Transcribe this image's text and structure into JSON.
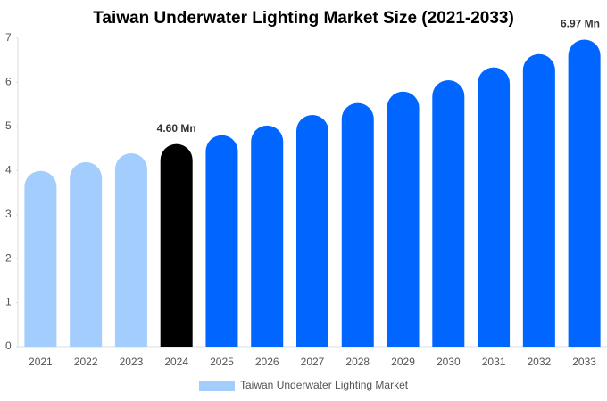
{
  "chart_data": {
    "type": "bar",
    "title": "Taiwan Underwater Lighting Market Size (2021-2033)",
    "categories": [
      "2021",
      "2022",
      "2023",
      "2024",
      "2025",
      "2026",
      "2027",
      "2028",
      "2029",
      "2030",
      "2031",
      "2032",
      "2033"
    ],
    "series": [
      {
        "name": "Taiwan Underwater Lighting Market",
        "color": "#a3cdfd",
        "values": [
          3.99,
          4.19,
          4.39,
          4.6,
          4.8,
          5.02,
          5.26,
          5.53,
          5.79,
          6.05,
          6.34,
          6.64,
          6.97
        ],
        "colors": [
          "#a3cdfd",
          "#a3cdfd",
          "#a3cdfd",
          "#000000",
          "#0066ff",
          "#0066ff",
          "#0066ff",
          "#0066ff",
          "#0066ff",
          "#0066ff",
          "#0066ff",
          "#0066ff",
          "#0066ff"
        ],
        "value_labels": [
          null,
          null,
          null,
          "4.60 Mn",
          null,
          null,
          null,
          null,
          null,
          null,
          null,
          null,
          "6.97 Mn"
        ]
      }
    ],
    "ylim": [
      0,
      7
    ],
    "yticks": [
      0,
      1,
      2,
      3,
      4,
      5,
      6,
      7
    ],
    "grid": false,
    "legend": "bottom"
  }
}
